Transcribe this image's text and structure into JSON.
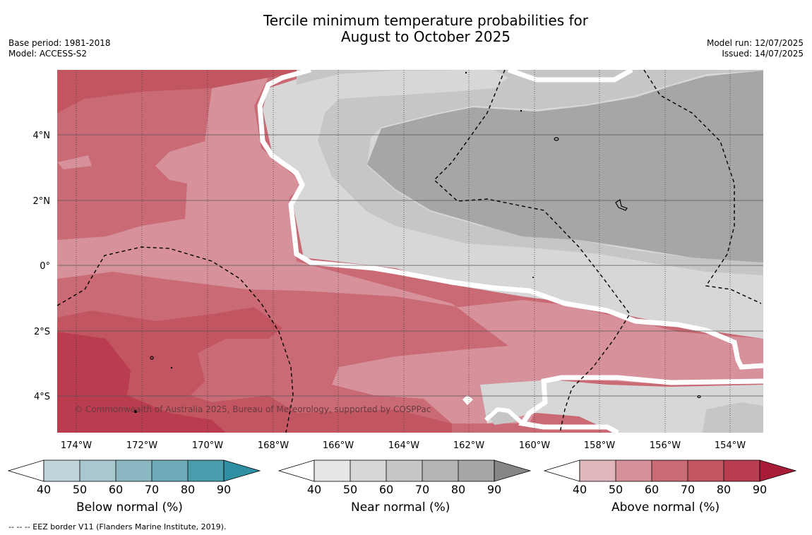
{
  "title": {
    "line1": "Tercile minimum temperature probabilities for",
    "line2": "August to October 2025"
  },
  "meta_left": {
    "base_period": "Base period: 1981-2018",
    "model": "Model: ACCESS-S2"
  },
  "meta_right": {
    "model_run": "Model run: 12/07/2025",
    "issued": "Issued: 14/07/2025"
  },
  "map": {
    "x_tick_labels": [
      "174°W",
      "172°W",
      "170°W",
      "168°W",
      "166°W",
      "164°W",
      "162°W",
      "160°W",
      "158°W",
      "156°W",
      "154°W"
    ],
    "y_tick_labels": [
      "4°N",
      "2°N",
      "0°",
      "2°S",
      "4°S"
    ],
    "copyright": "© Commonwealth of Australia 2025, Bureau of Meteorology, supported by COSPPac",
    "colors": {
      "above_40_50": "#d6919a",
      "above_50_60": "#c96a75",
      "above_60_70": "#c25660",
      "above_70_80": "#ba3c4f",
      "near_40_50": "#e6e6e6",
      "near_50_60": "#d7d7d7",
      "near_60_70": "#c6c6c6",
      "near_70_80": "#b5b5b5",
      "near_80_90": "#a6a6a6",
      "boundary": "#ffffff",
      "eez_line": "#000000"
    }
  },
  "colorbars": [
    {
      "label": "Below normal (%)",
      "ticks": [
        "40",
        "50",
        "60",
        "70",
        "80",
        "90"
      ],
      "colors": [
        "#bed5dc",
        "#a8c7ce",
        "#8bb7c3",
        "#6eabb9",
        "#4b9cad",
        "#2f8fa3"
      ]
    },
    {
      "label": "Near normal (%)",
      "ticks": [
        "40",
        "50",
        "60",
        "70",
        "80",
        "90"
      ],
      "colors": [
        "#e6e6e6",
        "#d7d7d7",
        "#c6c6c6",
        "#b5b5b5",
        "#a6a6a6",
        "#868686"
      ]
    },
    {
      "label": "Above normal (%)",
      "ticks": [
        "40",
        "50",
        "60",
        "70",
        "80",
        "90"
      ],
      "colors": [
        "#e1b7bd",
        "#d6919a",
        "#c96a75",
        "#c25660",
        "#ba3c4f",
        "#a91c38"
      ]
    }
  ],
  "footer": "--  --  -- EEZ border V11 (Flanders Marine Institute, 2019)."
}
